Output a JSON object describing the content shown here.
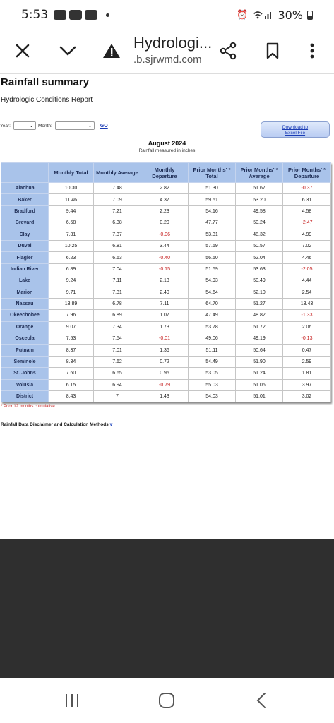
{
  "status_bar": {
    "time": "5:53",
    "battery": "30%"
  },
  "browser": {
    "title": "Hydrologi...",
    "url": ".b.sjrwmd.com"
  },
  "page": {
    "heading": "Rainfall summary",
    "subheading": "Hydrologic Conditions Report",
    "year_label": "Year:",
    "month_label": "Month:",
    "go_label": "GO",
    "download_line1": "Download to",
    "download_line2": "Excel File",
    "table_title": "August 2024",
    "table_subtitle": "Rainfall measured in inches",
    "footnote": "* Prior 12 months cumulative",
    "disclaimer": "Rainfall Data Disclaimer and Calculation Methods"
  },
  "table": {
    "headers": [
      "",
      "Monthly Total",
      "Monthly Average",
      "Monthly Departure",
      "Prior Months' * Total",
      "Prior Months' * Average",
      "Prior Months' * Departure"
    ],
    "rows": [
      [
        "Alachua",
        "10.30",
        "7.48",
        "2.82",
        "51.30",
        "51.67",
        "-0.37"
      ],
      [
        "Baker",
        "11.46",
        "7.09",
        "4.37",
        "59.51",
        "53.20",
        "6.31"
      ],
      [
        "Bradford",
        "9.44",
        "7.21",
        "2.23",
        "54.16",
        "49.58",
        "4.58"
      ],
      [
        "Brevard",
        "6.58",
        "6.38",
        "0.20",
        "47.77",
        "50.24",
        "-2.47"
      ],
      [
        "Clay",
        "7.31",
        "7.37",
        "-0.06",
        "53.31",
        "48.32",
        "4.99"
      ],
      [
        "Duval",
        "10.25",
        "6.81",
        "3.44",
        "57.59",
        "50.57",
        "7.02"
      ],
      [
        "Flagler",
        "6.23",
        "6.63",
        "-0.40",
        "56.50",
        "52.04",
        "4.46"
      ],
      [
        "Indian River",
        "6.89",
        "7.04",
        "-0.15",
        "51.59",
        "53.63",
        "-2.05"
      ],
      [
        "Lake",
        "9.24",
        "7.11",
        "2.13",
        "54.93",
        "50.49",
        "4.44"
      ],
      [
        "Marion",
        "9.71",
        "7.31",
        "2.40",
        "54.64",
        "52.10",
        "2.54"
      ],
      [
        "Nassau",
        "13.89",
        "6.78",
        "7.11",
        "64.70",
        "51.27",
        "13.43"
      ],
      [
        "Okeechobee",
        "7.96",
        "6.89",
        "1.07",
        "47.49",
        "48.82",
        "-1.33"
      ],
      [
        "Orange",
        "9.07",
        "7.34",
        "1.73",
        "53.78",
        "51.72",
        "2.06"
      ],
      [
        "Osceola",
        "7.53",
        "7.54",
        "-0.01",
        "49.06",
        "49.19",
        "-0.13"
      ],
      [
        "Putnam",
        "8.37",
        "7.01",
        "1.36",
        "51.11",
        "50.64",
        "0.47"
      ],
      [
        "Seminole",
        "8.34",
        "7.62",
        "0.72",
        "54.49",
        "51.90",
        "2.59"
      ],
      [
        "St. Johns",
        "7.60",
        "6.65",
        "0.95",
        "53.05",
        "51.24",
        "1.81"
      ],
      [
        "Volusia",
        "6.15",
        "6.94",
        "-0.79",
        "55.03",
        "51.06",
        "3.97"
      ],
      [
        "District",
        "8.43",
        "7",
        "1.43",
        "54.03",
        "51.01",
        "3.02"
      ]
    ]
  },
  "colors": {
    "header_bg": "#a9c3ea",
    "negative": "#c62020",
    "link": "#1a3bb5"
  }
}
